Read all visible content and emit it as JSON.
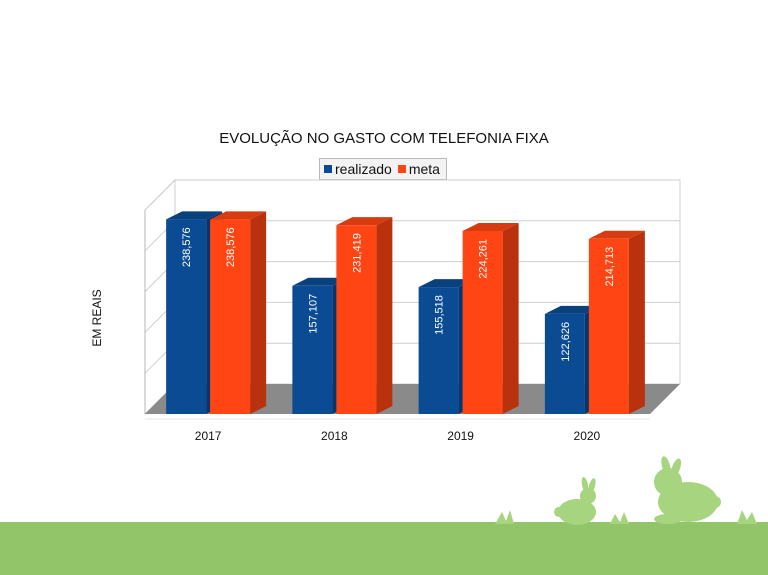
{
  "chart_data": {
    "type": "bar",
    "title": "EVOLUÇÃO NO GASTO COM TELEFONIA FIXA",
    "ylabel": "EM REAIS",
    "xlabel": "",
    "categories": [
      "2017",
      "2018",
      "2019",
      "2020"
    ],
    "series": [
      {
        "name": "realizado",
        "color": "#0b4b94",
        "values": [
          238.576,
          157.107,
          155.518,
          122.626
        ],
        "labels": [
          "238,576",
          "157,107",
          "155,518",
          "122,626"
        ]
      },
      {
        "name": "meta",
        "color": "#ff4513",
        "values": [
          238.576,
          231.419,
          224.261,
          214.713
        ],
        "labels": [
          "238,576",
          "231,419",
          "224,261",
          "214,713"
        ]
      }
    ],
    "ylim": [
      0,
      250
    ],
    "grid": true,
    "legend_position": "top",
    "style": "3d"
  },
  "decor": {
    "ground_color": "#92c569",
    "bunny_color": "#a7d47e"
  }
}
